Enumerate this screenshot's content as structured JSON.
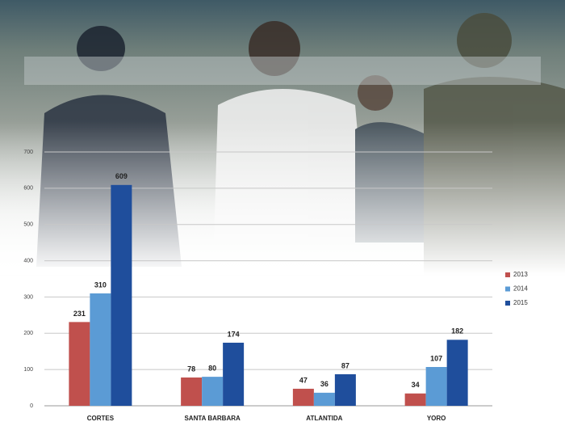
{
  "chart_data": {
    "type": "bar",
    "categories": [
      "CORTES",
      "SANTA BARBARA",
      "ATLANTIDA",
      "YORO"
    ],
    "series": [
      {
        "name": "2013",
        "color": "#c0504d",
        "values": [
          231,
          78,
          47,
          34
        ]
      },
      {
        "name": "2014",
        "color": "#5b9bd5",
        "values": [
          310,
          80,
          36,
          107
        ]
      },
      {
        "name": "2015",
        "color": "#1f4e9c",
        "values": [
          609,
          174,
          87,
          182
        ]
      }
    ],
    "ylim": [
      0,
      700
    ],
    "yticks": [
      0,
      100,
      200,
      300,
      400,
      500,
      600,
      700
    ],
    "grid": true,
    "legend": "right"
  }
}
